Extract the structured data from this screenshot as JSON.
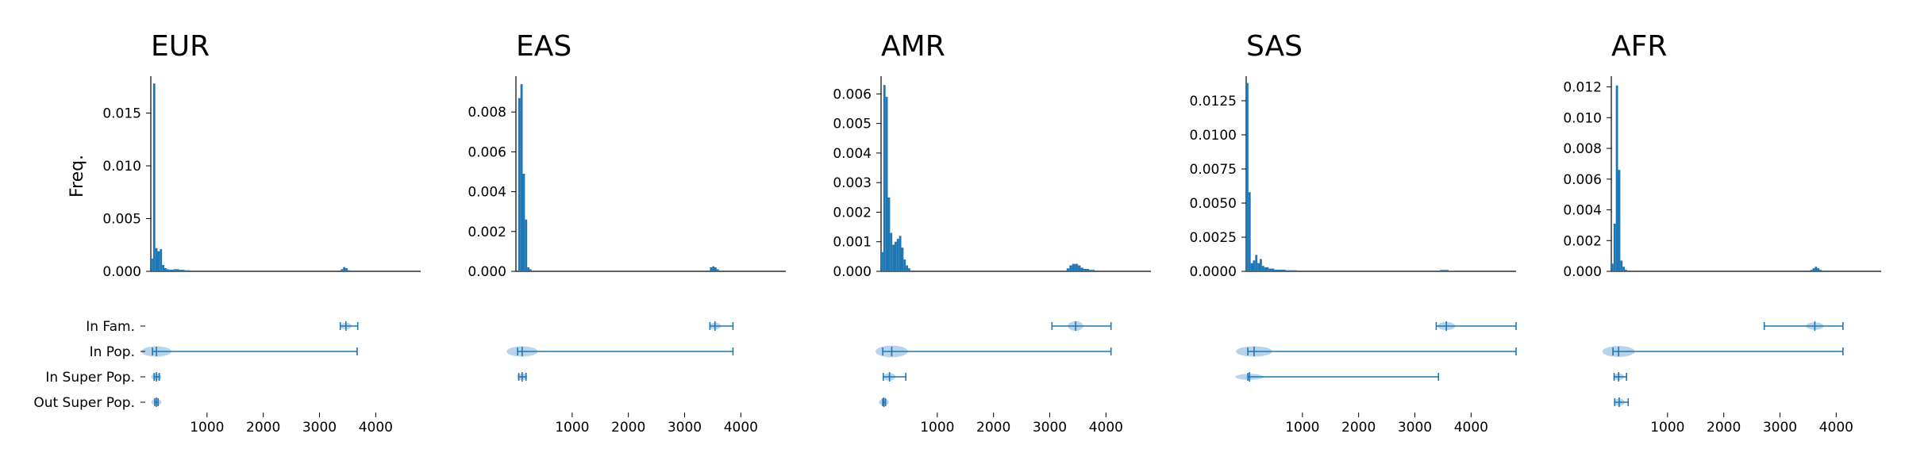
{
  "figure": {
    "ylabel": "Freq."
  },
  "chart_data": [
    {
      "type": "histogram",
      "title": "EUR",
      "xlim": [
        0,
        4800
      ],
      "ylim": [
        0,
        0.0185
      ],
      "yticks": [
        "0.000",
        "0.005",
        "0.010",
        "0.015"
      ],
      "ytick_values": [
        0,
        0.005,
        0.01,
        0.015
      ],
      "bins": [
        {
          "x0": 0,
          "x1": 40,
          "y": 0.0012
        },
        {
          "x0": 40,
          "x1": 80,
          "y": 0.0178
        },
        {
          "x0": 80,
          "x1": 120,
          "y": 0.0022
        },
        {
          "x0": 120,
          "x1": 160,
          "y": 0.0019
        },
        {
          "x0": 160,
          "x1": 200,
          "y": 0.0021
        },
        {
          "x0": 200,
          "x1": 240,
          "y": 0.0006
        },
        {
          "x0": 240,
          "x1": 280,
          "y": 0.0003
        },
        {
          "x0": 280,
          "x1": 320,
          "y": 0.0002
        },
        {
          "x0": 320,
          "x1": 400,
          "y": 0.00015
        },
        {
          "x0": 400,
          "x1": 500,
          "y": 0.0002
        },
        {
          "x0": 500,
          "x1": 600,
          "y": 0.00015
        },
        {
          "x0": 600,
          "x1": 700,
          "y": 0.0001
        },
        {
          "x0": 3380,
          "x1": 3420,
          "y": 0.0002
        },
        {
          "x0": 3420,
          "x1": 3460,
          "y": 0.0004
        },
        {
          "x0": 3460,
          "x1": 3500,
          "y": 0.0003
        },
        {
          "x0": 3500,
          "x1": 3540,
          "y": 0.0001
        }
      ],
      "violins": [
        {
          "category": "In Fam.",
          "min": 3370,
          "max": 3680,
          "median": 3470,
          "width": 0.25
        },
        {
          "category": "In Pop.",
          "min": 30,
          "max": 3670,
          "median": 100,
          "width": 0.5
        },
        {
          "category": "In Super Pop.",
          "min": 60,
          "max": 150,
          "median": 100,
          "width": 0.25
        },
        {
          "category": "Out Super Pop.",
          "min": 70,
          "max": 130,
          "median": 100,
          "width": 0.25
        }
      ]
    },
    {
      "type": "histogram",
      "title": "EAS",
      "xlim": [
        0,
        4800
      ],
      "ylim": [
        0,
        0.0098
      ],
      "yticks": [
        "0.000",
        "0.002",
        "0.004",
        "0.006",
        "0.008"
      ],
      "ytick_values": [
        0,
        0.002,
        0.004,
        0.006,
        0.008
      ],
      "bins": [
        {
          "x0": 40,
          "x1": 80,
          "y": 0.0087
        },
        {
          "x0": 80,
          "x1": 120,
          "y": 0.0094
        },
        {
          "x0": 120,
          "x1": 160,
          "y": 0.0049
        },
        {
          "x0": 160,
          "x1": 200,
          "y": 0.0026
        },
        {
          "x0": 200,
          "x1": 240,
          "y": 0.0002
        },
        {
          "x0": 240,
          "x1": 280,
          "y": 0.0001
        },
        {
          "x0": 3450,
          "x1": 3490,
          "y": 0.0002
        },
        {
          "x0": 3490,
          "x1": 3530,
          "y": 0.00025
        },
        {
          "x0": 3530,
          "x1": 3570,
          "y": 0.0002
        },
        {
          "x0": 3570,
          "x1": 3610,
          "y": 0.0001
        }
      ],
      "violins": [
        {
          "category": "In Fam.",
          "min": 3450,
          "max": 3860,
          "median": 3540,
          "width": 0.25
        },
        {
          "category": "In Pop.",
          "min": 30,
          "max": 3860,
          "median": 110,
          "width": 0.5
        },
        {
          "category": "In Super Pop.",
          "min": 50,
          "max": 180,
          "median": 110,
          "width": 0.25
        },
        {
          "category": "Out Super Pop.",
          "min": null,
          "max": null,
          "median": null,
          "width": 0
        }
      ]
    },
    {
      "type": "histogram",
      "title": "AMR",
      "xlim": [
        0,
        4800
      ],
      "ylim": [
        0,
        0.0066
      ],
      "yticks": [
        "0.000",
        "0.001",
        "0.002",
        "0.003",
        "0.004",
        "0.005",
        "0.006"
      ],
      "ytick_values": [
        0,
        0.001,
        0.002,
        0.003,
        0.004,
        0.005,
        0.006
      ],
      "bins": [
        {
          "x0": 0,
          "x1": 40,
          "y": 0.00065
        },
        {
          "x0": 40,
          "x1": 80,
          "y": 0.0063
        },
        {
          "x0": 80,
          "x1": 120,
          "y": 0.0059
        },
        {
          "x0": 120,
          "x1": 160,
          "y": 0.0025
        },
        {
          "x0": 160,
          "x1": 200,
          "y": 0.0013
        },
        {
          "x0": 200,
          "x1": 240,
          "y": 0.0009
        },
        {
          "x0": 240,
          "x1": 280,
          "y": 0.001
        },
        {
          "x0": 280,
          "x1": 320,
          "y": 0.0011
        },
        {
          "x0": 320,
          "x1": 360,
          "y": 0.0012
        },
        {
          "x0": 360,
          "x1": 400,
          "y": 0.0008
        },
        {
          "x0": 400,
          "x1": 440,
          "y": 0.0004
        },
        {
          "x0": 440,
          "x1": 480,
          "y": 0.0002
        },
        {
          "x0": 480,
          "x1": 520,
          "y": 0.0001
        },
        {
          "x0": 3300,
          "x1": 3350,
          "y": 0.0001
        },
        {
          "x0": 3350,
          "x1": 3400,
          "y": 0.0002
        },
        {
          "x0": 3400,
          "x1": 3450,
          "y": 0.00025
        },
        {
          "x0": 3450,
          "x1": 3500,
          "y": 0.00025
        },
        {
          "x0": 3500,
          "x1": 3550,
          "y": 0.0002
        },
        {
          "x0": 3550,
          "x1": 3600,
          "y": 0.00012
        },
        {
          "x0": 3600,
          "x1": 3700,
          "y": 8e-05
        },
        {
          "x0": 3700,
          "x1": 3800,
          "y": 5e-05
        }
      ],
      "violins": [
        {
          "category": "In Fam.",
          "min": 3040,
          "max": 4090,
          "median": 3460,
          "width": 0.45
        },
        {
          "category": "In Pop.",
          "min": 30,
          "max": 4090,
          "median": 190,
          "width": 0.6
        },
        {
          "category": "In Super Pop.",
          "min": 40,
          "max": 440,
          "median": 150,
          "width": 0.3
        },
        {
          "category": "Out Super Pop.",
          "min": 30,
          "max": 80,
          "median": 50,
          "width": 0.25
        }
      ]
    },
    {
      "type": "histogram",
      "title": "SAS",
      "xlim": [
        0,
        4800
      ],
      "ylim": [
        0,
        0.0143
      ],
      "yticks": [
        "0.0000",
        "0.0025",
        "0.0050",
        "0.0075",
        "0.0100",
        "0.0125"
      ],
      "ytick_values": [
        0,
        0.0025,
        0.005,
        0.0075,
        0.01,
        0.0125
      ],
      "bins": [
        {
          "x0": 0,
          "x1": 40,
          "y": 0.0138
        },
        {
          "x0": 40,
          "x1": 80,
          "y": 0.0058
        },
        {
          "x0": 80,
          "x1": 120,
          "y": 0.0006
        },
        {
          "x0": 120,
          "x1": 160,
          "y": 0.0008
        },
        {
          "x0": 160,
          "x1": 200,
          "y": 0.0012
        },
        {
          "x0": 200,
          "x1": 240,
          "y": 0.0006
        },
        {
          "x0": 240,
          "x1": 280,
          "y": 0.0009
        },
        {
          "x0": 280,
          "x1": 320,
          "y": 0.0004
        },
        {
          "x0": 320,
          "x1": 400,
          "y": 0.0003
        },
        {
          "x0": 400,
          "x1": 500,
          "y": 0.0002
        },
        {
          "x0": 500,
          "x1": 700,
          "y": 0.00012
        },
        {
          "x0": 700,
          "x1": 900,
          "y": 8e-05
        },
        {
          "x0": 3350,
          "x1": 3450,
          "y": 6e-05
        },
        {
          "x0": 3450,
          "x1": 3600,
          "y": 0.0001
        },
        {
          "x0": 3600,
          "x1": 3700,
          "y": 5e-05
        }
      ],
      "violins": [
        {
          "category": "In Fam.",
          "min": 3380,
          "max": 4800,
          "median": 3560,
          "width": 0.35
        },
        {
          "category": "In Pop.",
          "min": 30,
          "max": 4800,
          "median": 140,
          "width": 0.5
        },
        {
          "category": "In Super Pop.",
          "min": 30,
          "max": 3420,
          "median": 60,
          "width": 0.2
        },
        {
          "category": "Out Super Pop.",
          "min": null,
          "max": null,
          "median": null,
          "width": 0
        }
      ]
    },
    {
      "type": "histogram",
      "title": "AFR",
      "xlim": [
        0,
        4800
      ],
      "ylim": [
        0,
        0.0127
      ],
      "yticks": [
        "0.000",
        "0.002",
        "0.004",
        "0.006",
        "0.008",
        "0.010",
        "0.012"
      ],
      "ytick_values": [
        0,
        0.002,
        0.004,
        0.006,
        0.008,
        0.01,
        0.012
      ],
      "bins": [
        {
          "x0": 0,
          "x1": 40,
          "y": 0.0005
        },
        {
          "x0": 40,
          "x1": 80,
          "y": 0.0031
        },
        {
          "x0": 80,
          "x1": 120,
          "y": 0.0121
        },
        {
          "x0": 120,
          "x1": 160,
          "y": 0.0066
        },
        {
          "x0": 160,
          "x1": 200,
          "y": 0.0007
        },
        {
          "x0": 200,
          "x1": 240,
          "y": 0.0003
        },
        {
          "x0": 240,
          "x1": 280,
          "y": 0.0001
        },
        {
          "x0": 3540,
          "x1": 3580,
          "y": 0.0001
        },
        {
          "x0": 3580,
          "x1": 3620,
          "y": 0.0002
        },
        {
          "x0": 3620,
          "x1": 3660,
          "y": 0.0003
        },
        {
          "x0": 3660,
          "x1": 3700,
          "y": 0.0002
        },
        {
          "x0": 3700,
          "x1": 3740,
          "y": 0.0001
        }
      ],
      "violins": [
        {
          "category": "In Fam.",
          "min": 2720,
          "max": 4120,
          "median": 3620,
          "width": 0.3
        },
        {
          "category": "In Pop.",
          "min": 30,
          "max": 4120,
          "median": 130,
          "width": 0.55
        },
        {
          "category": "In Super Pop.",
          "min": 50,
          "max": 270,
          "median": 130,
          "width": 0.25
        },
        {
          "category": "Out Super Pop.",
          "min": 60,
          "max": 300,
          "median": 140,
          "width": 0.3
        }
      ]
    }
  ],
  "violin_categories": [
    "In Fam.",
    "In Pop.",
    "In Super Pop.",
    "Out Super Pop."
  ],
  "x_ticks": [
    1000,
    2000,
    3000,
    4000
  ],
  "x_tick_labels": [
    "1000",
    "2000",
    "3000",
    "4000"
  ],
  "colors": {
    "bar": "#1f77b4",
    "violin_fill": "#a8c8e6",
    "violin_line": "#1f77b4",
    "axis": "#000000"
  }
}
